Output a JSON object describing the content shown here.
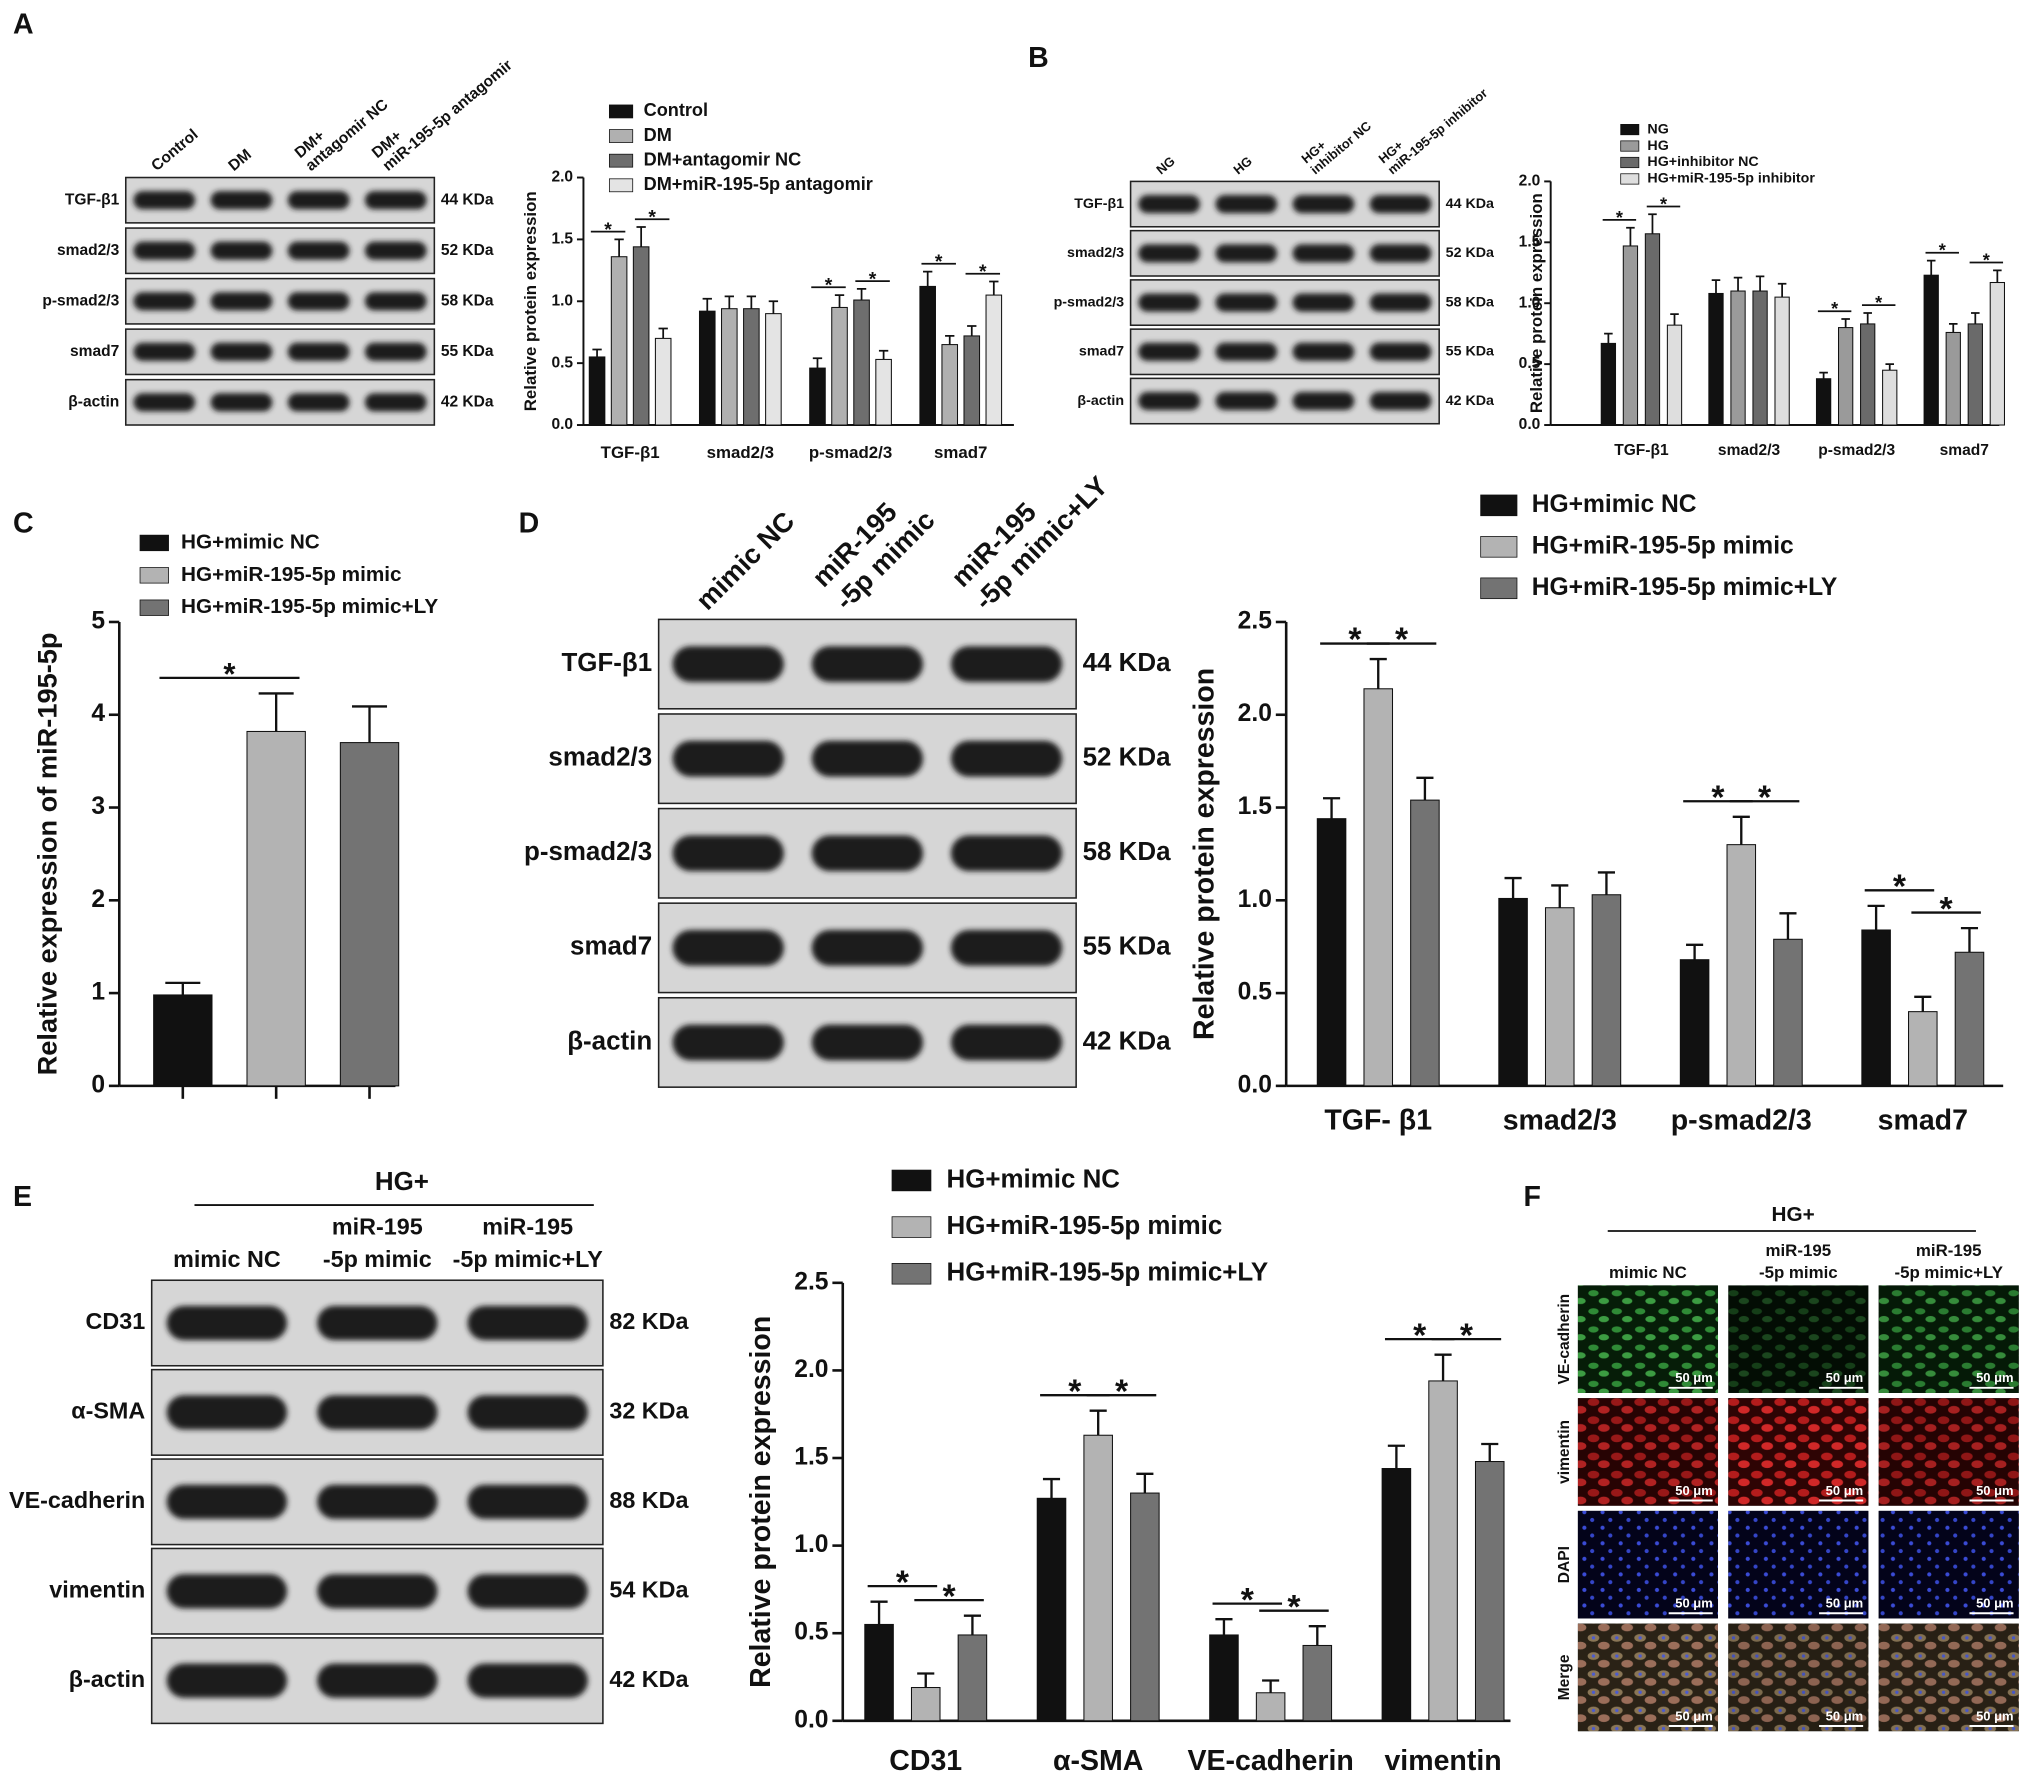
{
  "panel_labels": [
    "A",
    "B",
    "C",
    "D",
    "E",
    "F"
  ],
  "blots": [
    {
      "lanes": [
        [
          "Control"
        ],
        [
          "DM"
        ],
        [
          "DM+",
          "antagomir NC"
        ],
        [
          "DM+",
          "miR-195-5p antagomir"
        ]
      ],
      "rows": [
        {
          "protein": "TGF-β1",
          "size": "44 KDa"
        },
        {
          "protein": "smad2/3",
          "size": "52 KDa"
        },
        {
          "protein": "p-smad2/3",
          "size": "58 KDa"
        },
        {
          "protein": "smad7",
          "size": "55 KDa"
        },
        {
          "protein": "β-actin",
          "size": "42 KDa"
        }
      ]
    },
    {
      "lanes": [
        [
          "NG"
        ],
        [
          "HG"
        ],
        [
          "HG+",
          "inhibitor NC"
        ],
        [
          "HG+",
          "miR-195-5p inhibitor"
        ]
      ],
      "rows": [
        {
          "protein": "TGF-β1",
          "size": "44 KDa"
        },
        {
          "protein": "smad2/3",
          "size": "52 KDa"
        },
        {
          "protein": "p-smad2/3",
          "size": "58 KDa"
        },
        {
          "protein": "smad7",
          "size": "55 KDa"
        },
        {
          "protein": "β-actin",
          "size": "42 KDa"
        }
      ]
    },
    {
      "lanes": [
        [
          "mimic NC"
        ],
        [
          "miR-195",
          "-5p mimic"
        ],
        [
          "miR-195",
          "-5p mimic+LY"
        ]
      ],
      "rows": [
        {
          "protein": "TGF-β1",
          "size": "44 KDa"
        },
        {
          "protein": "smad2/3",
          "size": "52 KDa"
        },
        {
          "protein": "p-smad2/3",
          "size": "58 KDa"
        },
        {
          "protein": "smad7",
          "size": "55 KDa"
        },
        {
          "protein": "β-actin",
          "size": "42 KDa"
        }
      ]
    },
    {
      "group": "HG+",
      "lanes": [
        [
          "mimic NC"
        ],
        [
          "miR-195",
          "-5p mimic"
        ],
        [
          "miR-195",
          "-5p mimic+LY"
        ]
      ],
      "rows": [
        {
          "protein": "CD31",
          "size": "82 KDa"
        },
        {
          "protein": "α-SMA",
          "size": "32 KDa"
        },
        {
          "protein": "VE-cadherin",
          "size": "88 KDa"
        },
        {
          "protein": "vimentin",
          "size": "54 KDa"
        },
        {
          "protein": "β-actin",
          "size": "42 KDa"
        }
      ]
    }
  ],
  "chart_data": [
    {
      "type": "bar",
      "y_label": "Relative protein expression",
      "categories": [
        "TGF-β1",
        "smad2/3",
        "p-smad2/3",
        "smad7"
      ],
      "series": [
        {
          "name": "Control",
          "color": "#111111",
          "values": [
            0.55,
            0.92,
            0.46,
            1.12
          ],
          "errors": [
            0.06,
            0.1,
            0.08,
            0.12
          ]
        },
        {
          "name": "DM",
          "color": "#b0b0b0",
          "values": [
            1.36,
            0.94,
            0.95,
            0.65
          ],
          "errors": [
            0.14,
            0.1,
            0.1,
            0.07
          ]
        },
        {
          "name": "DM+antagomir NC",
          "color": "#6e6e6e",
          "values": [
            1.44,
            0.94,
            1.01,
            0.72
          ],
          "errors": [
            0.16,
            0.1,
            0.09,
            0.08
          ]
        },
        {
          "name": "DM+miR-195-5p antagomir",
          "color": "#e4e4e4",
          "values": [
            0.7,
            0.9,
            0.53,
            1.05
          ],
          "errors": [
            0.08,
            0.1,
            0.07,
            0.11
          ]
        }
      ],
      "ylim": [
        0,
        2
      ],
      "yticks": [
        {
          "value": 0,
          "label": "0.0"
        },
        0.5,
        {
          "value": 1,
          "label": "1.0"
        },
        1.5,
        {
          "value": 2,
          "label": "2.0"
        }
      ],
      "significance": [
        {
          "category": 0,
          "series": [
            0,
            1
          ],
          "label": "*"
        },
        {
          "category": 0,
          "series": [
            2,
            3
          ],
          "label": "*"
        },
        {
          "category": 2,
          "series": [
            0,
            1
          ],
          "label": "*"
        },
        {
          "category": 2,
          "series": [
            2,
            3
          ],
          "label": "*"
        },
        {
          "category": 3,
          "series": [
            0,
            1
          ],
          "label": "*"
        },
        {
          "category": 3,
          "series": [
            2,
            3
          ],
          "label": "*"
        }
      ]
    },
    {
      "type": "bar",
      "y_label": "Relative protein expression",
      "categories": [
        "TGF-β1",
        "smad2/3",
        "p-smad2/3",
        "smad7"
      ],
      "series": [
        {
          "name": "NG",
          "color": "#111111",
          "values": [
            0.67,
            1.08,
            0.38,
            1.23
          ],
          "errors": [
            0.08,
            0.11,
            0.05,
            0.12
          ]
        },
        {
          "name": "HG",
          "color": "#9a9a9a",
          "values": [
            1.47,
            1.1,
            0.8,
            0.76
          ],
          "errors": [
            0.15,
            0.11,
            0.07,
            0.07
          ]
        },
        {
          "name": "HG+inhibitor NC",
          "color": "#6a6a6a",
          "values": [
            1.57,
            1.1,
            0.83,
            0.83
          ],
          "errors": [
            0.16,
            0.12,
            0.09,
            0.09
          ]
        },
        {
          "name": "HG+miR-195-5p inhibitor",
          "color": "#dedede",
          "values": [
            0.82,
            1.05,
            0.45,
            1.17
          ],
          "errors": [
            0.09,
            0.11,
            0.05,
            0.1
          ]
        }
      ],
      "ylim": [
        0,
        2
      ],
      "yticks": [
        {
          "value": 0,
          "label": "0.0"
        },
        0.5,
        {
          "value": 1,
          "label": "1.0"
        },
        1.5,
        {
          "value": 2,
          "label": "2.0"
        }
      ],
      "significance": [
        {
          "category": 0,
          "series": [
            0,
            1
          ],
          "label": "*"
        },
        {
          "category": 0,
          "series": [
            2,
            3
          ],
          "label": "*"
        },
        {
          "category": 2,
          "series": [
            0,
            1
          ],
          "label": "*"
        },
        {
          "category": 2,
          "series": [
            2,
            3
          ],
          "label": "*"
        },
        {
          "category": 3,
          "series": [
            0,
            1
          ],
          "label": "*"
        },
        {
          "category": 3,
          "series": [
            2,
            3
          ],
          "label": "*"
        }
      ]
    },
    {
      "type": "bar",
      "y_label": "Relative expression of miR-195-5p",
      "categories": [
        null
      ],
      "series": [
        {
          "name": "HG+mimic NC",
          "color": "#111111",
          "values": [
            0.98
          ],
          "errors": [
            0.13
          ]
        },
        {
          "name": "HG+miR-195-5p mimic",
          "color": "#b3b3b3",
          "values": [
            3.82
          ],
          "errors": [
            0.41
          ]
        },
        {
          "name": "HG+miR-195-5p mimic+LY",
          "color": "#737373",
          "values": [
            3.7
          ],
          "errors": [
            0.39
          ]
        }
      ],
      "ylim": [
        0,
        5
      ],
      "yticks": [
        0,
        1,
        2,
        3,
        4,
        5
      ],
      "significance": [
        {
          "category": 0,
          "series": [
            0,
            1
          ],
          "label": "*"
        }
      ]
    },
    {
      "type": "bar",
      "y_label": "Relative protein expression",
      "categories": [
        "TGF- β1",
        "smad2/3",
        "p-smad2/3",
        "smad7"
      ],
      "series": [
        {
          "name": "HG+mimic NC",
          "color": "#111111",
          "values": [
            1.44,
            1.01,
            0.68,
            0.84
          ],
          "errors": [
            0.11,
            0.11,
            0.08,
            0.13
          ]
        },
        {
          "name": "HG+miR-195-5p mimic",
          "color": "#b3b3b3",
          "values": [
            2.14,
            0.96,
            1.3,
            0.4
          ],
          "errors": [
            0.16,
            0.12,
            0.15,
            0.08
          ]
        },
        {
          "name": "HG+miR-195-5p mimic+LY",
          "color": "#737373",
          "values": [
            1.54,
            1.03,
            0.79,
            0.72
          ],
          "errors": [
            0.12,
            0.12,
            0.14,
            0.13
          ]
        }
      ],
      "ylim": [
        0,
        2.5
      ],
      "yticks": [
        {
          "value": 0,
          "label": "0.0"
        },
        0.5,
        {
          "value": 1,
          "label": "1.0"
        },
        1.5,
        {
          "value": 2,
          "label": "2.0"
        },
        2.5
      ],
      "significance": [
        {
          "category": 0,
          "series": [
            0,
            1
          ],
          "label": "*"
        },
        {
          "category": 0,
          "series": [
            1,
            2
          ],
          "label": "*"
        },
        {
          "category": 2,
          "series": [
            0,
            1
          ],
          "label": "*"
        },
        {
          "category": 2,
          "series": [
            1,
            2
          ],
          "label": "*"
        },
        {
          "category": 3,
          "series": [
            0,
            1
          ],
          "label": "*"
        },
        {
          "category": 3,
          "series": [
            1,
            2
          ],
          "label": "*"
        }
      ]
    },
    {
      "type": "bar",
      "y_label": "Relative protein expression",
      "categories": [
        "CD31",
        "α-SMA",
        "VE-cadherin",
        "vimentin"
      ],
      "series": [
        {
          "name": "HG+mimic NC",
          "color": "#111111",
          "values": [
            0.55,
            1.27,
            0.49,
            1.44
          ],
          "errors": [
            0.13,
            0.11,
            0.09,
            0.13
          ]
        },
        {
          "name": "HG+miR-195-5p mimic",
          "color": "#b3b3b3",
          "values": [
            0.19,
            1.63,
            0.16,
            1.94
          ],
          "errors": [
            0.08,
            0.14,
            0.07,
            0.15
          ]
        },
        {
          "name": "HG+miR-195-5p mimic+LY",
          "color": "#737373",
          "values": [
            0.49,
            1.3,
            0.43,
            1.48
          ],
          "errors": [
            0.11,
            0.11,
            0.11,
            0.1
          ]
        }
      ],
      "ylim": [
        0,
        2.5
      ],
      "yticks": [
        {
          "value": 0,
          "label": "0.0"
        },
        0.5,
        {
          "value": 1,
          "label": "1.0"
        },
        1.5,
        {
          "value": 2,
          "label": "2.0"
        },
        2.5
      ],
      "significance": [
        {
          "category": 0,
          "series": [
            0,
            1
          ],
          "label": "*"
        },
        {
          "category": 0,
          "series": [
            1,
            2
          ],
          "label": "*"
        },
        {
          "category": 1,
          "series": [
            0,
            1
          ],
          "label": "*"
        },
        {
          "category": 1,
          "series": [
            1,
            2
          ],
          "label": "*"
        },
        {
          "category": 2,
          "series": [
            0,
            1
          ],
          "label": "*"
        },
        {
          "category": 2,
          "series": [
            1,
            2
          ],
          "label": "*"
        },
        {
          "category": 3,
          "series": [
            0,
            1
          ],
          "label": "*"
        },
        {
          "category": 3,
          "series": [
            1,
            2
          ],
          "label": "*"
        }
      ]
    }
  ],
  "imaging": {
    "group": "HG+",
    "columns": [
      [
        "mimic NC"
      ],
      [
        "miR-195",
        "-5p mimic"
      ],
      [
        "miR-195",
        "-5p mimic+LY"
      ]
    ],
    "rows": [
      "VE-cadherin",
      "vimentin",
      "DAPI",
      "Merge"
    ],
    "scale_bar": "50 μm"
  }
}
